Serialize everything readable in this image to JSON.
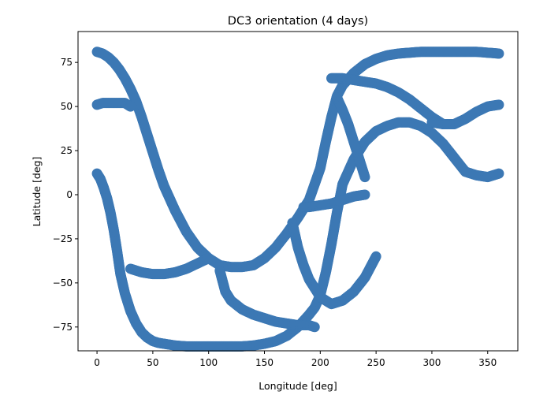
{
  "chart_data": {
    "type": "scatter",
    "title": "DC3 orientation (4 days)",
    "xlabel": "Longitude [deg]",
    "ylabel": "Latitude [deg]",
    "xlim": [
      -17,
      377
    ],
    "ylim": [
      -88.5,
      92.5
    ],
    "xticks": [
      0,
      50,
      100,
      150,
      200,
      250,
      300,
      350
    ],
    "yticks": [
      -75,
      -50,
      -25,
      0,
      25,
      50,
      75
    ],
    "grid": false,
    "legend": "none",
    "marker_color": "#3c78b4",
    "traces": [
      {
        "x": [
          0,
          5,
          10,
          15,
          20,
          25,
          30,
          35,
          40,
          45,
          50,
          55,
          60,
          70,
          80,
          90,
          100,
          110,
          120,
          130,
          140,
          150,
          160,
          170,
          180,
          190,
          200,
          205,
          210,
          215,
          220,
          230,
          240,
          250,
          260,
          270,
          280,
          290,
          300,
          310,
          320,
          330,
          340,
          350,
          360
        ],
        "y": [
          81,
          80,
          78,
          75,
          71,
          66,
          60,
          53,
          44,
          34,
          24,
          14,
          5,
          -9,
          -21,
          -30,
          -36,
          -40,
          -41,
          -41,
          -40,
          -36,
          -30,
          -22,
          -13,
          -3,
          15,
          30,
          44,
          56,
          62,
          69,
          74,
          77,
          79,
          80,
          80.5,
          81,
          81,
          81,
          81,
          81,
          81,
          80.5,
          80
        ]
      },
      {
        "x": [
          0,
          5,
          10,
          15,
          20,
          25,
          30
        ],
        "y": [
          51,
          52,
          52,
          52,
          52,
          52,
          50
        ]
      },
      {
        "x": [
          0,
          3,
          6,
          9,
          12,
          15,
          18,
          21,
          25,
          30,
          35,
          40,
          45,
          50,
          55,
          60,
          65,
          70,
          80,
          90,
          100,
          110,
          120,
          130,
          140,
          150,
          160,
          170,
          180,
          190,
          195,
          200,
          205,
          210,
          215,
          220,
          230,
          240,
          250,
          260,
          270,
          280,
          290,
          300,
          310,
          320,
          330,
          340,
          350,
          360
        ],
        "y": [
          12,
          9,
          4,
          -2,
          -10,
          -20,
          -32,
          -45,
          -56,
          -66,
          -73,
          -78,
          -81,
          -83,
          -84,
          -84.5,
          -85,
          -85.5,
          -86,
          -86,
          -86,
          -86,
          -86,
          -86,
          -85.5,
          -84.5,
          -83,
          -80,
          -75,
          -68,
          -64,
          -57,
          -44,
          -28,
          -10,
          6,
          20,
          30,
          36,
          39,
          41,
          41,
          39,
          35,
          29,
          21,
          13,
          11,
          10,
          12
        ]
      },
      {
        "x": [
          30,
          40,
          50,
          60,
          70,
          80,
          90,
          100
        ],
        "y": [
          -42,
          -44,
          -45,
          -45,
          -44,
          -42,
          -39,
          -36
        ]
      },
      {
        "x": [
          110,
          115,
          120,
          130,
          140,
          150,
          160,
          170,
          180,
          190,
          195
        ],
        "y": [
          -43,
          -55,
          -60,
          -65,
          -68,
          -70,
          -72,
          -73,
          -74,
          -74,
          -75
        ]
      },
      {
        "x": [
          175,
          180,
          185,
          190,
          200,
          210,
          220,
          230,
          240,
          250
        ],
        "y": [
          -16,
          -30,
          -40,
          -48,
          -58,
          -62,
          -60,
          -55,
          -47,
          -35
        ]
      },
      {
        "x": [
          185,
          190,
          200,
          210,
          220,
          230,
          240
        ],
        "y": [
          -7,
          -7,
          -6,
          -5,
          -3,
          -1,
          0
        ]
      },
      {
        "x": [
          210,
          220,
          230,
          240,
          250,
          260,
          270,
          280,
          290,
          300,
          310
        ],
        "y": [
          66,
          66,
          65,
          64,
          63,
          61,
          58,
          54,
          49,
          44,
          40
        ]
      },
      {
        "x": [
          215,
          220,
          225,
          230,
          235,
          240
        ],
        "y": [
          55,
          48,
          40,
          30,
          20,
          10
        ]
      },
      {
        "x": [
          300,
          310,
          320,
          330,
          340,
          350,
          360
        ],
        "y": [
          41,
          40,
          40,
          43,
          47,
          50,
          51
        ]
      }
    ]
  }
}
